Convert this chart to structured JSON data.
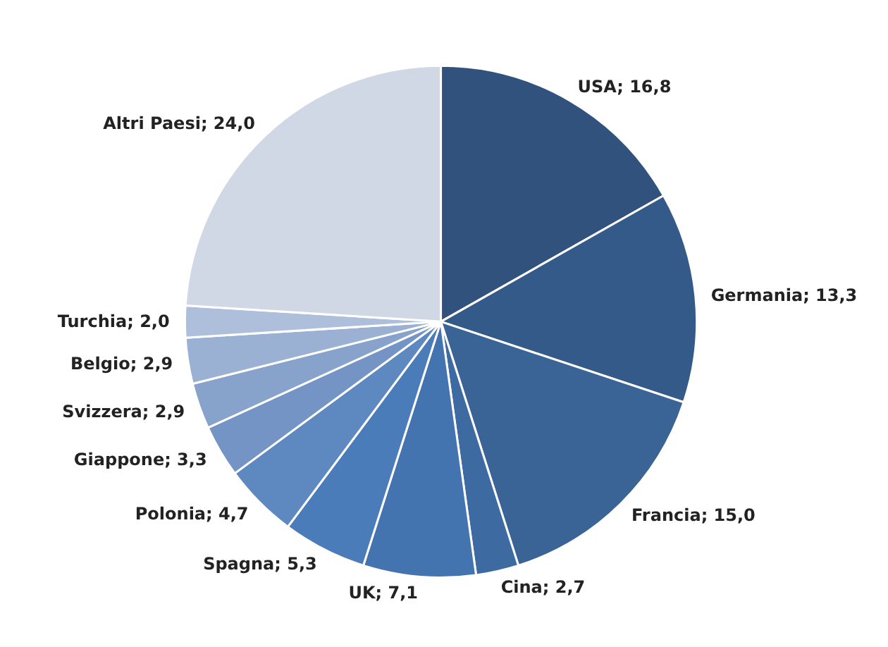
{
  "chart_data": {
    "type": "pie",
    "categories": [
      "USA",
      "Germania",
      "Francia",
      "Cina",
      "UK",
      "Spagna",
      "Polonia",
      "Giappone",
      "Svizzera",
      "Belgio",
      "Turchia",
      "Altri Paesi"
    ],
    "values": [
      16.8,
      13.3,
      15.0,
      2.7,
      7.1,
      5.3,
      4.7,
      3.3,
      2.9,
      2.9,
      2.0,
      24.0
    ],
    "value_labels": [
      "16,8",
      "13,3",
      "15,0",
      "2,7",
      "7,1",
      "5,3",
      "4,7",
      "3,3",
      "2,9",
      "2,9",
      "2,0",
      "24,0"
    ],
    "colors": [
      "#30527c",
      "#345a8a",
      "#3a6396",
      "#3d6aa0",
      "#4374b0",
      "#4a7cba",
      "#5e88c0",
      "#7394c4",
      "#87a2cb",
      "#9bb1d3",
      "#adbfdb",
      "#d0d8e6"
    ]
  }
}
